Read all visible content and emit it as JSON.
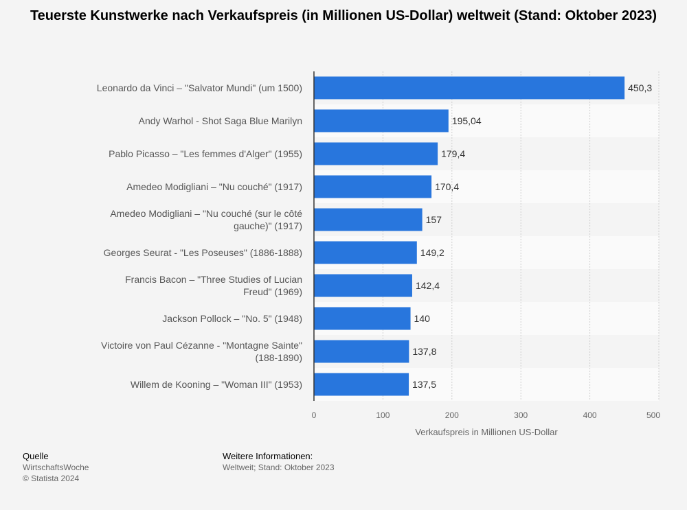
{
  "chart_data": {
    "type": "bar",
    "orientation": "horizontal",
    "title": "Teuerste Kunstwerke nach Verkaufspreis (in Millionen US-Dollar) weltweit (Stand: Oktober 2023)",
    "categories": [
      [
        "Leonardo da Vinci – \"Salvator Mundi\" (um 1500)"
      ],
      [
        "Andy Warhol - Shot Saga Blue Marilyn"
      ],
      [
        "Pablo Picasso – \"Les femmes d'Alger\" (1955)"
      ],
      [
        "Amedeo Modigliani – \"Nu couché\" (1917)"
      ],
      [
        "Amedeo Modigliani – \"Nu couché (sur le côté",
        "gauche)\" (1917)"
      ],
      [
        "Georges Seurat - \"Les Poseuses\" (1886-1888)"
      ],
      [
        "Francis Bacon – \"Three Studies of Lucian",
        "Freud\" (1969)"
      ],
      [
        "Jackson Pollock – \"No. 5\" (1948)"
      ],
      [
        "Victoire von Paul Cézanne - \"Montagne Sainte\"",
        "(188-1890)"
      ],
      [
        "Willem de Kooning – \"Woman III\" (1953)"
      ]
    ],
    "values": [
      450.3,
      195.04,
      179.4,
      170.4,
      157,
      149.2,
      142.4,
      140,
      137.8,
      137.5
    ],
    "value_labels": [
      "450,3",
      "195,04",
      "179,4",
      "170,4",
      "157",
      "149,2",
      "142,4",
      "140",
      "137,8",
      "137,5"
    ],
    "xlabel": "Verkaufspreis in Millionen US-Dollar",
    "ylabel": "",
    "xlim": [
      0,
      500
    ],
    "xticks": [
      0,
      100,
      200,
      300,
      400,
      500
    ],
    "grid": true,
    "bar_color": "#2876dd"
  },
  "footer": {
    "source_heading": "Quelle",
    "source_name": "WirtschaftsWoche",
    "copyright": "© Statista 2024",
    "info_heading": "Weitere Informationen:",
    "info_text": "Weltweit; Stand: Oktober 2023"
  }
}
